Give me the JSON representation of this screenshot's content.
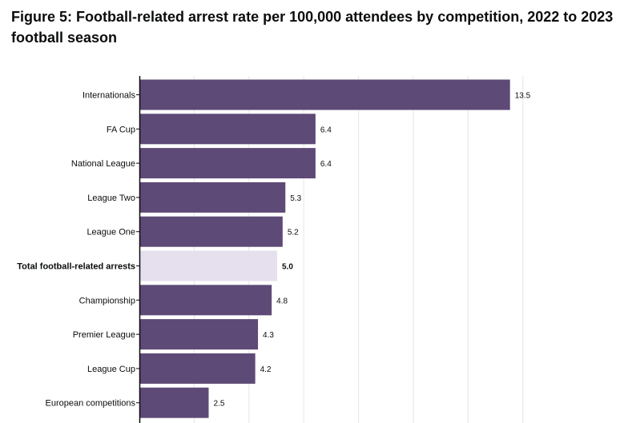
{
  "figure": {
    "title": "Figure 5: Football-related arrest rate per 100,000 attendees by competition, 2022 to 2023 football season"
  },
  "chart_data": {
    "type": "bar",
    "orientation": "horizontal",
    "title": "Figure 5: Football-related arrest rate per 100,000 attendees by competition, 2022 to 2023 football season",
    "xlabel": "",
    "ylabel": "",
    "xlim": [
      0,
      15
    ],
    "grid": true,
    "categories": [
      "Internationals",
      "FA Cup",
      "National League",
      "League Two",
      "League One",
      "Total football-related arrests",
      "Championship",
      "Premier League",
      "League Cup",
      "European competitions"
    ],
    "values": [
      13.5,
      6.4,
      6.4,
      5.3,
      5.2,
      5.0,
      4.8,
      4.3,
      4.2,
      2.5
    ],
    "value_labels": [
      "13.5",
      "6.4",
      "6.4",
      "5.3",
      "5.2",
      "5.0",
      "4.8",
      "4.3",
      "4.2",
      "2.5"
    ],
    "highlight_category": "Total football-related arrests",
    "colors": {
      "bar": "#5e4a76",
      "highlight_bar": "#e6e0ee",
      "gridline": "#e5e5e5",
      "axis": "#0b0c0c",
      "text": "#0b0c0c"
    }
  }
}
